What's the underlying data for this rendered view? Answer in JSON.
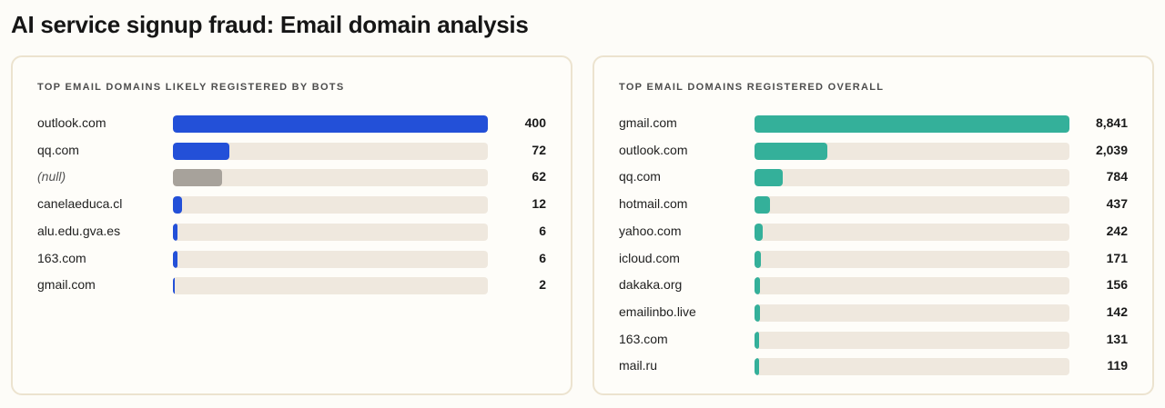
{
  "title": "AI service signup fraud: Email domain analysis",
  "chart_data": [
    {
      "type": "bar",
      "orientation": "horizontal",
      "title": "TOP EMAIL DOMAINS LIKELY REGISTERED BY BOTS",
      "color": "#2350d8",
      "null_color": "#a7a29b",
      "track_color": "#efe8de",
      "xlim": [
        0,
        400
      ],
      "categories": [
        "outlook.com",
        "qq.com",
        "(null)",
        "canelaeduca.cl",
        "alu.edu.gva.es",
        "163.com",
        "gmail.com"
      ],
      "values": [
        400,
        72,
        62,
        12,
        6,
        6,
        2
      ],
      "value_labels": [
        "400",
        "72",
        "62",
        "12",
        "6",
        "6",
        "2"
      ]
    },
    {
      "type": "bar",
      "orientation": "horizontal",
      "title": "TOP EMAIL DOMAINS REGISTERED OVERALL",
      "color": "#34b09a",
      "track_color": "#efe8de",
      "xlim": [
        0,
        8841
      ],
      "categories": [
        "gmail.com",
        "outlook.com",
        "qq.com",
        "hotmail.com",
        "yahoo.com",
        "icloud.com",
        "dakaka.org",
        "emailinbo.live",
        "163.com",
        "mail.ru"
      ],
      "values": [
        8841,
        2039,
        784,
        437,
        242,
        171,
        156,
        142,
        131,
        119
      ],
      "value_labels": [
        "8,841",
        "2,039",
        "784",
        "437",
        "242",
        "171",
        "156",
        "142",
        "131",
        "119"
      ]
    }
  ]
}
